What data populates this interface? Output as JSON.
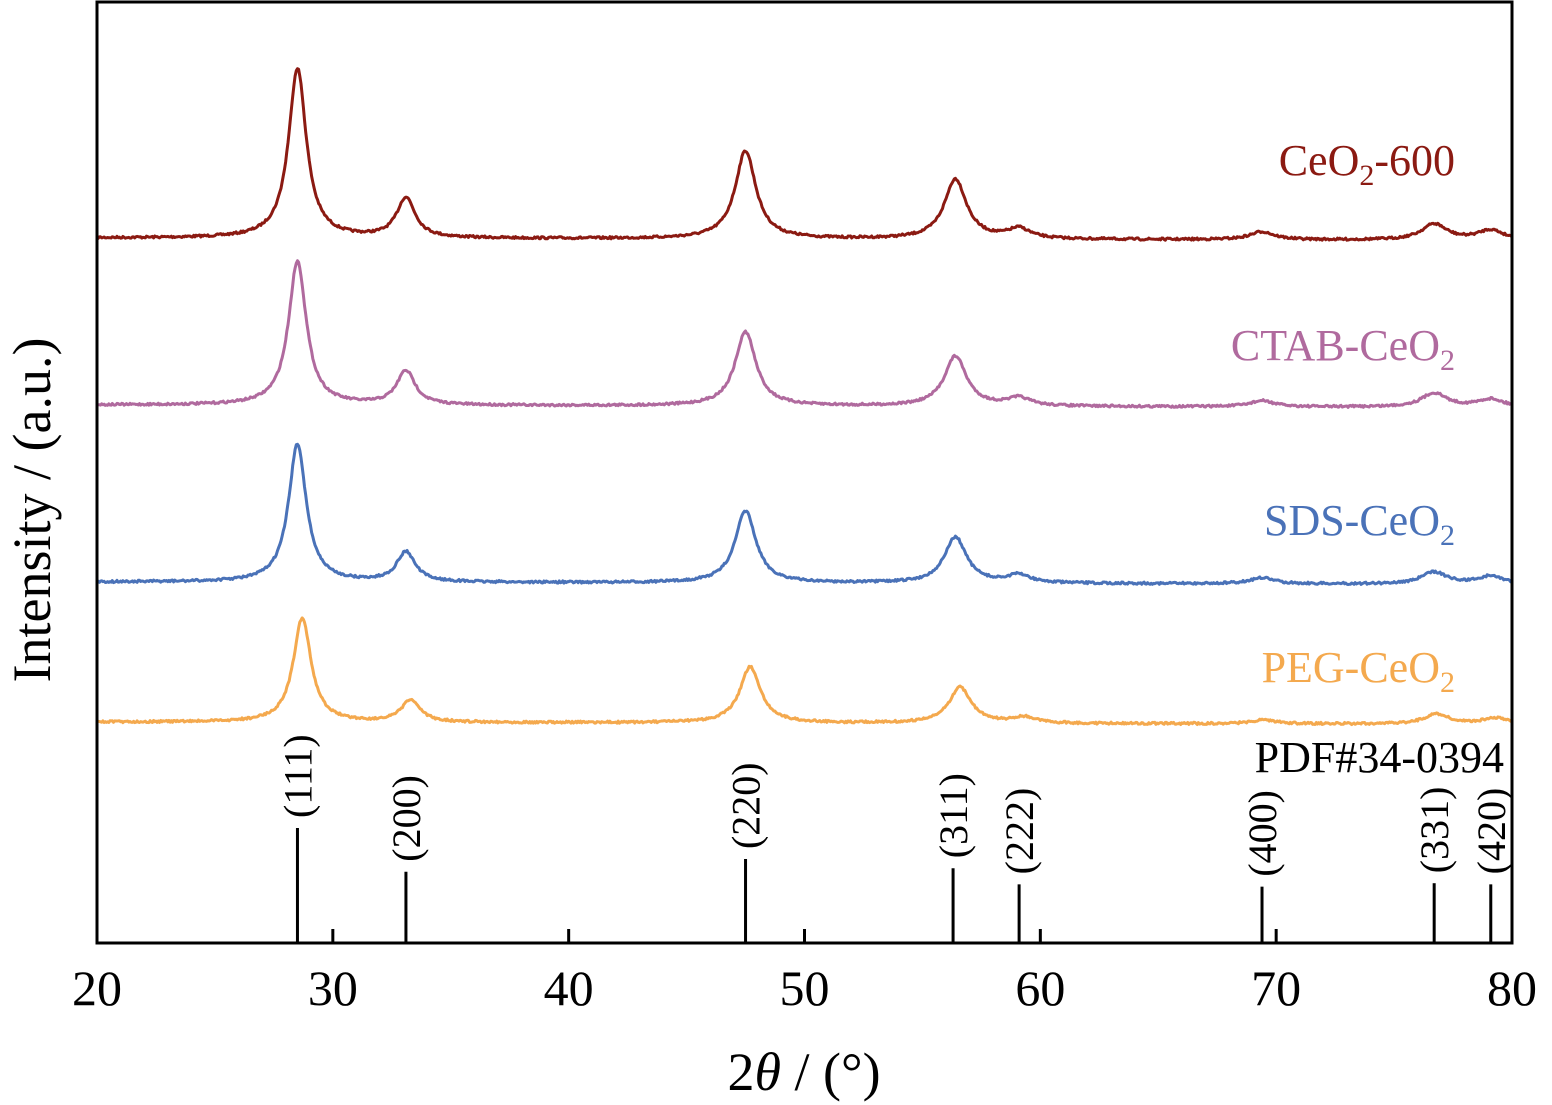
{
  "chart_data": {
    "type": "line",
    "xlabel_prefix": "2",
    "xlabel_symbol": "θ",
    "xlabel_suffix": " / (°)",
    "ylabel": "Intensity / (a.u.)",
    "xlim": [
      20,
      80
    ],
    "x_ticks": [
      "20",
      "30",
      "40",
      "50",
      "60",
      "70",
      "80"
    ],
    "grid": false,
    "legend": "inline-right",
    "series": [
      {
        "name": "CeO2-600",
        "label_main": "CeO",
        "label_sub": "2",
        "label_tail": "-600",
        "color": "#8b1a12",
        "baseline": 0.0,
        "offset": 3.0,
        "peaks": [
          {
            "x": 28.5,
            "height": 0.85
          },
          {
            "x": 33.1,
            "height": 0.2
          },
          {
            "x": 47.5,
            "height": 0.44
          },
          {
            "x": 56.4,
            "height": 0.3
          },
          {
            "x": 59.1,
            "height": 0.05
          },
          {
            "x": 69.4,
            "height": 0.04
          },
          {
            "x": 76.7,
            "height": 0.08
          },
          {
            "x": 79.1,
            "height": 0.05
          }
        ]
      },
      {
        "name": "CTAB-CeO2",
        "label_main": "CTAB-CeO",
        "label_sub": "2",
        "label_tail": "",
        "color": "#b06a9e",
        "baseline": 0.0,
        "offset": 2.0,
        "peaks": [
          {
            "x": 28.5,
            "height": 0.72
          },
          {
            "x": 33.1,
            "height": 0.17
          },
          {
            "x": 47.5,
            "height": 0.37
          },
          {
            "x": 56.4,
            "height": 0.25
          },
          {
            "x": 59.1,
            "height": 0.04
          },
          {
            "x": 69.4,
            "height": 0.03
          },
          {
            "x": 76.7,
            "height": 0.07
          },
          {
            "x": 79.1,
            "height": 0.04
          }
        ]
      },
      {
        "name": "SDS-CeO2",
        "label_main": "SDS-CeO",
        "label_sub": "2",
        "label_tail": "",
        "color": "#4a72b8",
        "baseline": 0.0,
        "offset": 1.0,
        "peaks": [
          {
            "x": 28.5,
            "height": 0.69
          },
          {
            "x": 33.1,
            "height": 0.15
          },
          {
            "x": 47.5,
            "height": 0.36
          },
          {
            "x": 56.4,
            "height": 0.23
          },
          {
            "x": 59.1,
            "height": 0.04
          },
          {
            "x": 69.4,
            "height": 0.03
          },
          {
            "x": 76.7,
            "height": 0.06
          },
          {
            "x": 79.1,
            "height": 0.04
          }
        ]
      },
      {
        "name": "PEG-CeO2",
        "label_main": "PEG-CeO",
        "label_sub": "2",
        "label_tail": "",
        "color": "#f4a94e",
        "baseline": 0.0,
        "offset": 0.0,
        "peaks": [
          {
            "x": 28.7,
            "height": 0.52
          },
          {
            "x": 33.3,
            "height": 0.11
          },
          {
            "x": 47.7,
            "height": 0.28
          },
          {
            "x": 56.6,
            "height": 0.18
          },
          {
            "x": 59.3,
            "height": 0.03
          },
          {
            "x": 69.5,
            "height": 0.02
          },
          {
            "x": 76.8,
            "height": 0.05
          },
          {
            "x": 79.3,
            "height": 0.03
          }
        ]
      }
    ],
    "reference": {
      "name": "PDF#34-0394",
      "lines": [
        {
          "x": 28.5,
          "intensity": 1.0,
          "hkl": "(111)"
        },
        {
          "x": 33.1,
          "intensity": 0.62,
          "hkl": "(200)"
        },
        {
          "x": 47.5,
          "intensity": 0.73,
          "hkl": "(220)"
        },
        {
          "x": 56.3,
          "intensity": 0.65,
          "hkl": "(311)"
        },
        {
          "x": 59.1,
          "intensity": 0.51,
          "hkl": "(222)"
        },
        {
          "x": 69.4,
          "intensity": 0.49,
          "hkl": "(400)"
        },
        {
          "x": 76.7,
          "intensity": 0.52,
          "hkl": "(331)"
        },
        {
          "x": 79.1,
          "intensity": 0.51,
          "hkl": "(420)"
        }
      ]
    }
  }
}
